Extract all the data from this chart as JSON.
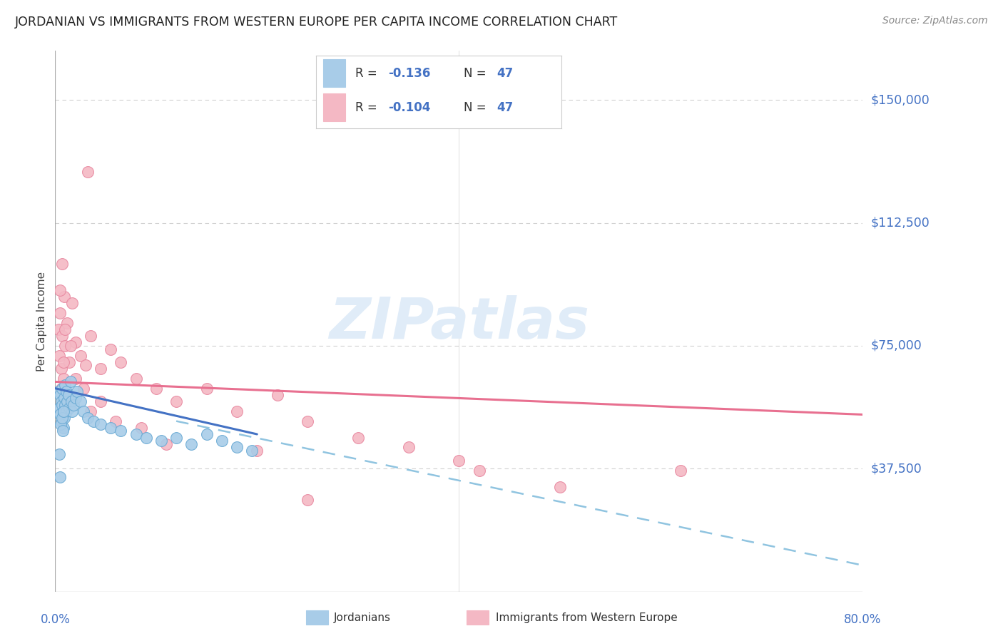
{
  "title": "JORDANIAN VS IMMIGRANTS FROM WESTERN EUROPE PER CAPITA INCOME CORRELATION CHART",
  "source": "Source: ZipAtlas.com",
  "ylabel": "Per Capita Income",
  "ytick_vals": [
    37500,
    75000,
    112500,
    150000
  ],
  "ytick_labels": [
    "$37,500",
    "$75,000",
    "$112,500",
    "$150,000"
  ],
  "xmin": 0.0,
  "xmax": 80.0,
  "ymin": 0,
  "ymax": 165000,
  "r_jordanian": -0.136,
  "n_jordanian": 47,
  "r_western": -0.104,
  "n_western": 47,
  "blue_scatter_face": "#a8cce8",
  "blue_scatter_edge": "#6aaad4",
  "pink_scatter_face": "#f4b8c4",
  "pink_scatter_edge": "#e888a0",
  "blue_line_color": "#4472C4",
  "pink_line_color": "#e87090",
  "dashed_line_color": "#90c4e0",
  "grid_color": "#d0d0d0",
  "title_color": "#222222",
  "axis_label_color": "#4472C4",
  "source_color": "#888888",
  "watermark_color": "#e0ecf8",
  "legend_border_color": "#cccccc",
  "jordanians_x": [
    0.3,
    0.4,
    0.5,
    0.5,
    0.6,
    0.6,
    0.7,
    0.7,
    0.8,
    0.8,
    0.9,
    0.9,
    1.0,
    1.0,
    1.1,
    1.1,
    1.2,
    1.3,
    1.4,
    1.5,
    1.6,
    1.7,
    1.8,
    2.0,
    2.2,
    2.5,
    2.8,
    3.2,
    3.8,
    4.5,
    5.5,
    6.5,
    8.0,
    9.0,
    10.5,
    12.0,
    13.5,
    15.0,
    16.5,
    18.0,
    19.5,
    0.4,
    0.55,
    0.65,
    0.75,
    0.85,
    0.5
  ],
  "jordanians_y": [
    61000,
    56000,
    60000,
    54000,
    58000,
    52000,
    62000,
    57000,
    55000,
    50000,
    59000,
    53000,
    63000,
    57000,
    61000,
    55000,
    58000,
    60000,
    56000,
    64000,
    58000,
    55000,
    57000,
    59000,
    61000,
    58000,
    55000,
    53000,
    52000,
    51000,
    50000,
    49000,
    48000,
    47000,
    46000,
    47000,
    45000,
    48000,
    46000,
    44000,
    43000,
    42000,
    51000,
    53000,
    49000,
    55000,
    35000
  ],
  "western_x": [
    0.3,
    0.4,
    0.5,
    0.6,
    0.7,
    0.8,
    0.9,
    1.0,
    1.2,
    1.4,
    1.7,
    2.0,
    2.5,
    3.0,
    3.5,
    4.5,
    5.5,
    6.5,
    8.0,
    10.0,
    12.0,
    15.0,
    18.0,
    22.0,
    25.0,
    30.0,
    35.0,
    42.0,
    50.0,
    62.0,
    0.5,
    0.6,
    0.7,
    0.8,
    1.0,
    1.5,
    2.0,
    2.8,
    3.5,
    4.5,
    6.0,
    8.5,
    11.0,
    20.0,
    25.0,
    40.0,
    3.2
  ],
  "western_y": [
    80000,
    72000,
    85000,
    68000,
    78000,
    65000,
    90000,
    75000,
    82000,
    70000,
    88000,
    76000,
    72000,
    69000,
    78000,
    68000,
    74000,
    70000,
    65000,
    62000,
    58000,
    62000,
    55000,
    60000,
    52000,
    47000,
    44000,
    37000,
    32000,
    37000,
    92000,
    62000,
    100000,
    70000,
    80000,
    75000,
    65000,
    62000,
    55000,
    58000,
    52000,
    50000,
    45000,
    43000,
    28000,
    40000,
    128000
  ],
  "blue_line_x": [
    0.0,
    20.0
  ],
  "blue_line_y": [
    62000,
    48000
  ],
  "pink_line_x": [
    0.0,
    80.0
  ],
  "pink_line_y": [
    64000,
    54000
  ],
  "dashed_line_x": [
    12.0,
    80.0
  ],
  "dashed_line_y": [
    52000,
    8000
  ]
}
